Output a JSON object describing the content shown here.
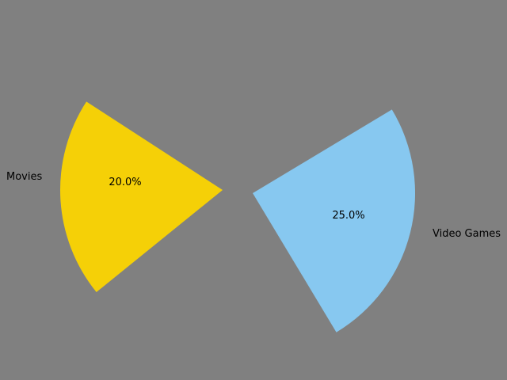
{
  "page": {
    "background_color": "#808080"
  },
  "chart_data": {
    "type": "pie",
    "title": "",
    "slices": [
      {
        "label": "Movies",
        "value": 20.0,
        "percent_label": "20.0%",
        "color": "#f5d007",
        "exploded": true
      },
      {
        "label": "Video Games",
        "value": 25.0,
        "percent_label": "25.0%",
        "color": "#87c8f0",
        "exploded": true
      }
    ],
    "legend": "none",
    "grid": false
  }
}
